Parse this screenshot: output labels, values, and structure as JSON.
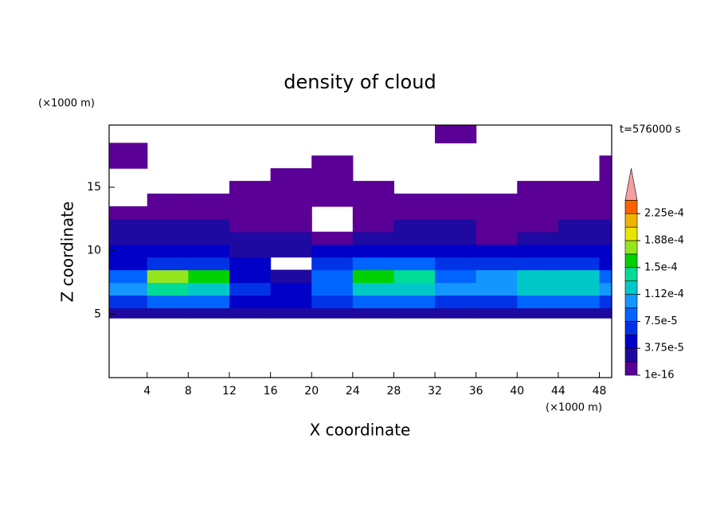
{
  "chart_data": {
    "type": "contour",
    "title": "density of cloud",
    "x_label": "X coordinate",
    "y_label": "Z coordinate",
    "x_unit": "(×1000 m)",
    "y_unit": "(×1000 m)",
    "time_label": "t=576000 s",
    "xlim": [
      0.3,
      49.2
    ],
    "ylim": [
      0,
      19.9
    ],
    "xticks": [
      4,
      8,
      12,
      16,
      20,
      24,
      28,
      32,
      36,
      40,
      44,
      48
    ],
    "yticks": [
      5,
      10,
      15
    ],
    "xbins": [
      0.3,
      4,
      8,
      12,
      16,
      20,
      24,
      28,
      32,
      36,
      40,
      44,
      48,
      49.2
    ],
    "ybins": [
      4.7,
      5.5,
      6.5,
      7.5,
      8.5,
      9.5,
      10.5,
      11.5,
      12.5,
      13.5,
      14.5,
      15.5,
      16.5,
      17.5,
      18.5,
      19.9
    ],
    "z": [
      [
        2e-05,
        3e-05,
        3e-05,
        2e-05,
        2e-05,
        3e-05,
        3e-05,
        3e-05,
        2e-05,
        3e-05,
        3e-05,
        3e-05,
        2e-05
      ],
      [
        6e-05,
        8e-05,
        9e-05,
        4e-05,
        5e-05,
        7e-05,
        9e-05,
        8e-05,
        6e-05,
        7e-05,
        8e-05,
        8e-05,
        6e-05
      ],
      [
        0.0001,
        0.00014,
        0.00013,
        6e-05,
        5e-05,
        9e-05,
        0.00013,
        0.00013,
        0.0001,
        0.00011,
        0.00012,
        0.00012,
        0.0001
      ],
      [
        9e-05,
        0.00017,
        0.00016,
        4e-05,
        2e-05,
        8e-05,
        0.00015,
        0.00014,
        9e-05,
        0.0001,
        0.00012,
        0.00012,
        9e-05
      ],
      [
        5e-05,
        6e-05,
        6e-05,
        4e-05,
        null,
        7e-05,
        9e-05,
        8e-05,
        6e-05,
        6e-05,
        7e-05,
        6e-05,
        5e-05
      ],
      [
        4e-05,
        4e-05,
        4e-05,
        3e-05,
        2e-05,
        5e-05,
        5e-05,
        5e-05,
        4e-05,
        4e-05,
        4e-05,
        4e-05,
        4e-05
      ],
      [
        3e-05,
        3e-05,
        3e-05,
        2e-05,
        2e-05,
        1e-05,
        2e-05,
        3e-05,
        3e-05,
        1e-05,
        2e-05,
        3e-05,
        3e-05
      ],
      [
        2e-05,
        2e-05,
        2e-05,
        1e-05,
        1e-05,
        null,
        1e-05,
        2e-05,
        2e-05,
        1e-05,
        1e-05,
        2e-05,
        2e-05
      ],
      [
        1e-05,
        1e-05,
        1e-05,
        1e-05,
        1e-05,
        null,
        1e-05,
        1e-05,
        1e-05,
        1e-05,
        1e-05,
        1e-05,
        1e-05
      ],
      [
        null,
        1e-05,
        1e-05,
        1e-05,
        1e-05,
        1e-05,
        1e-05,
        1e-05,
        1e-05,
        1e-05,
        1e-05,
        1e-05,
        1e-05
      ],
      [
        null,
        null,
        null,
        1e-05,
        1e-05,
        1e-05,
        1e-05,
        null,
        null,
        null,
        1e-05,
        1e-05,
        1e-05
      ],
      [
        null,
        null,
        null,
        null,
        1e-05,
        1e-05,
        null,
        null,
        null,
        null,
        null,
        null,
        1e-05
      ],
      [
        1e-05,
        null,
        null,
        null,
        null,
        1e-05,
        null,
        null,
        null,
        null,
        null,
        null,
        1e-05
      ],
      [
        1e-05,
        null,
        null,
        null,
        null,
        null,
        null,
        null,
        null,
        null,
        null,
        null,
        null
      ],
      [
        null,
        null,
        null,
        null,
        null,
        null,
        null,
        null,
        1e-05,
        null,
        null,
        null,
        null
      ]
    ],
    "levels": [
      1e-16,
      1.875e-05,
      3.75e-05,
      5.625e-05,
      7.5e-05,
      9.375e-05,
      0.0001125,
      0.00013125,
      0.00015,
      0.00016875,
      0.0001875,
      0.00020625,
      0.000225,
      0.00024375
    ],
    "colors": [
      "#5a0096",
      "#1e0aa0",
      "#0000c8",
      "#0032e6",
      "#0064ff",
      "#1496ff",
      "#00c8c8",
      "#00dc96",
      "#00d200",
      "#96e61e",
      "#e6e600",
      "#f0b400",
      "#fa6400"
    ],
    "above_color": "#f5a0a0",
    "top_color": "#f01e1e",
    "cbar_ticks": [
      {
        "value": 1e-16,
        "label": "1e-16"
      },
      {
        "value": 3.75e-05,
        "label": "3.75e-5"
      },
      {
        "value": 7.5e-05,
        "label": "7.5e-5"
      },
      {
        "value": 0.0001125,
        "label": "1.12e-4"
      },
      {
        "value": 0.00015,
        "label": "1.5e-4"
      },
      {
        "value": 0.0001875,
        "label": "1.88e-4"
      },
      {
        "value": 0.000225,
        "label": "2.25e-4"
      }
    ]
  }
}
